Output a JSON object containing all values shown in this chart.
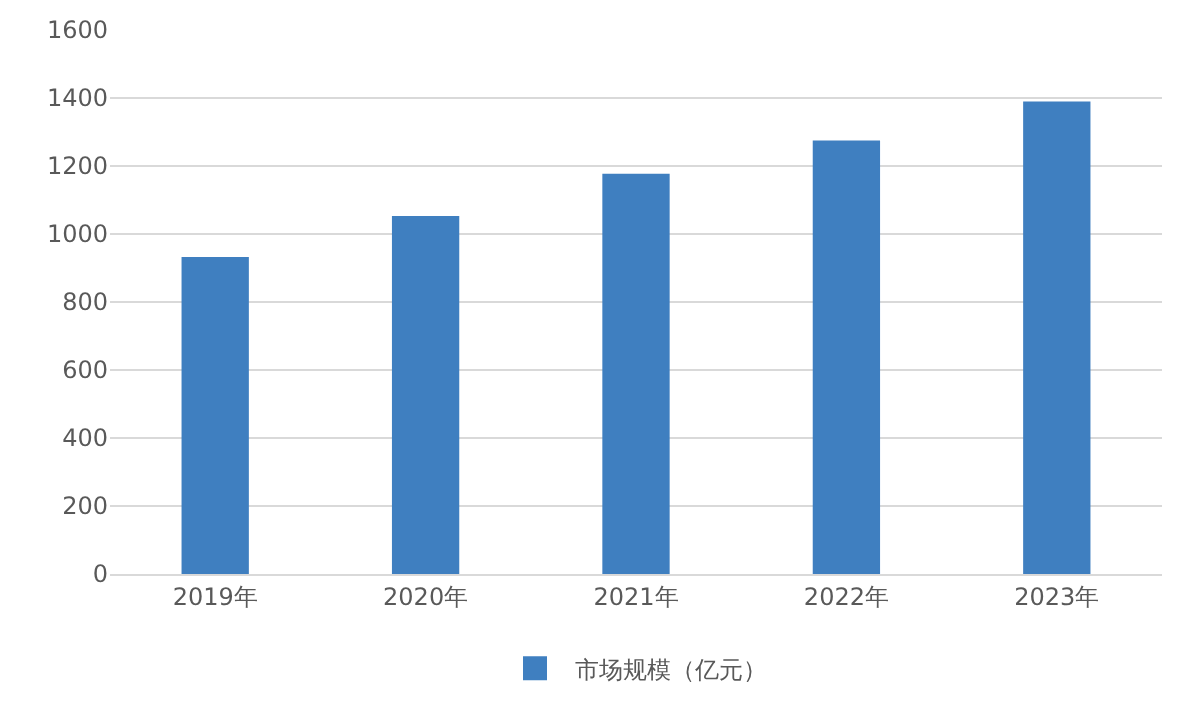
{
  "chart_data": {
    "type": "bar",
    "categories": [
      "2019年",
      "2020年",
      "2021年",
      "2022年",
      "2023年"
    ],
    "series": [
      {
        "name": "市场规模（亿元）",
        "color": "#3f7fc0",
        "values": [
          932,
          1053,
          1177,
          1275,
          1390
        ]
      }
    ],
    "ylim": [
      0,
      1600
    ],
    "yticks": [
      0,
      200,
      400,
      600,
      800,
      1000,
      1200,
      1400,
      1600
    ],
    "grid": "y",
    "legend": "bottom"
  }
}
